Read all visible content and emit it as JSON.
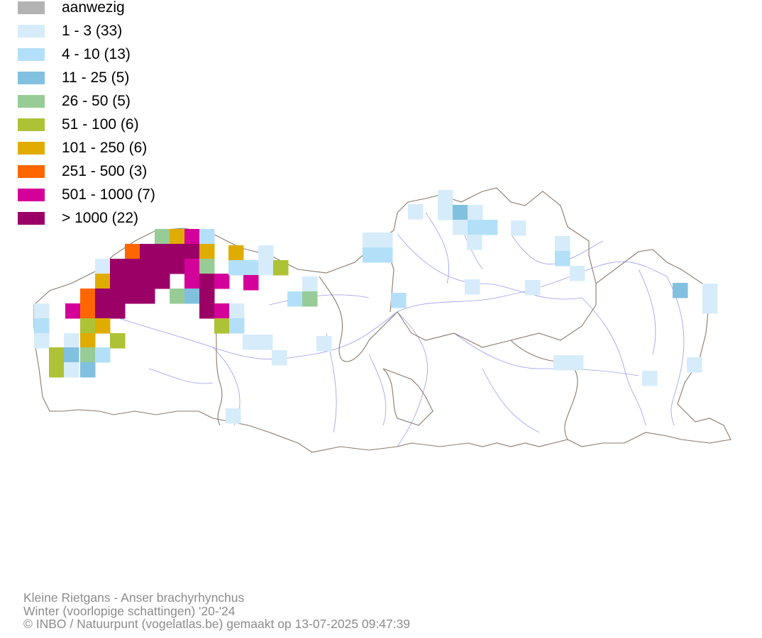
{
  "legend": [
    {
      "label": "aanwezig",
      "color": "#b3b3b3"
    },
    {
      "label": "1 - 3 (33)",
      "color": "#d6ecfa"
    },
    {
      "label": "4 - 10 (13)",
      "color": "#b3e0f8"
    },
    {
      "label": "11 - 25 (5)",
      "color": "#82c0e0"
    },
    {
      "label": "26 - 50 (5)",
      "color": "#98cc96"
    },
    {
      "label": "51 - 100 (6)",
      "color": "#aec235"
    },
    {
      "label": "101 - 250 (6)",
      "color": "#e0ac00"
    },
    {
      "label": "251 - 500 (3)",
      "color": "#ff6600"
    },
    {
      "label": "501 - 1000 (7)",
      "color": "#d4009a"
    },
    {
      "label": "> 1000 (22)",
      "color": "#9b0066"
    }
  ],
  "caption": {
    "species": "Kleine Rietgans - Anser brachyrhynchus",
    "season": "Winter (voorlopige schattingen) '20-'24",
    "credit": "© INBO / Natuurpunt (vogelatlas.be) gemaakt op 13-07-2025 09:47:39"
  },
  "colors": {
    "border": "#8a7a6e",
    "river": "#9b9bef"
  }
}
